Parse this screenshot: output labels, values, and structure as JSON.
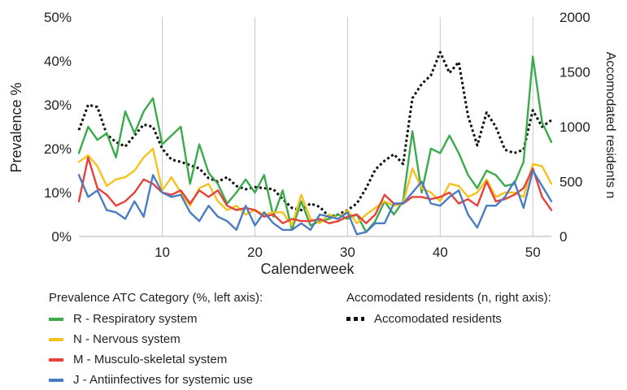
{
  "chart_data": {
    "type": "line",
    "xlabel": "Calenderweek",
    "ylabel_left": "Prevalence %",
    "ylabel_right": "Accomodated residents n",
    "x": [
      1,
      2,
      3,
      4,
      5,
      6,
      7,
      8,
      9,
      10,
      11,
      12,
      13,
      14,
      15,
      16,
      17,
      18,
      19,
      20,
      21,
      22,
      23,
      24,
      25,
      26,
      27,
      28,
      29,
      30,
      31,
      32,
      33,
      34,
      35,
      36,
      37,
      38,
      39,
      40,
      41,
      42,
      43,
      44,
      45,
      46,
      47,
      48,
      49,
      50,
      51,
      52
    ],
    "xlim": [
      1,
      52
    ],
    "x_ticks": [
      "10",
      "20",
      "30",
      "40",
      "50"
    ],
    "y_left_ticks": [
      "0%",
      "10%",
      "20%",
      "30%",
      "40%",
      "50%"
    ],
    "y_left_lim": [
      0,
      50
    ],
    "y_right_ticks": [
      "0",
      "500",
      "1000",
      "1500",
      "2000"
    ],
    "y_right_lim": [
      0,
      2000
    ],
    "grid": "vertical",
    "series": [
      {
        "name": "R - Respiratory system",
        "axis": "left",
        "color": "#3aaa4a",
        "style": "solid",
        "values": [
          19,
          25,
          22,
          23.5,
          18,
          28.5,
          23.5,
          28.5,
          31.5,
          21,
          23,
          25,
          12,
          21,
          14.5,
          12,
          7.5,
          10,
          13,
          10,
          14,
          4.5,
          10.5,
          1.5,
          8,
          2.5,
          3.5,
          4,
          5,
          4,
          5,
          1,
          3.5,
          8,
          5,
          8,
          24,
          10,
          20,
          19,
          23,
          19,
          14,
          11,
          15,
          14,
          11.5,
          12,
          17,
          41,
          26,
          21.5
        ]
      },
      {
        "name": "N - Nervous system",
        "axis": "left",
        "color": "#f5c21c",
        "style": "solid",
        "values": [
          17,
          18.5,
          16,
          11.5,
          13,
          13.5,
          15,
          18,
          20,
          10.5,
          13.5,
          10,
          7,
          11,
          12,
          8,
          6,
          7,
          5,
          6,
          5,
          5.5,
          5.5,
          2.5,
          9.5,
          4,
          3,
          5,
          4,
          6,
          3,
          5,
          6.5,
          8,
          7,
          7.5,
          15.5,
          11,
          10,
          8,
          12,
          11.5,
          9,
          10,
          13,
          9,
          10,
          10,
          9,
          16.5,
          16,
          12
        ]
      },
      {
        "name": "M - Musculo-skeletal system",
        "axis": "left",
        "color": "#e8413b",
        "style": "solid",
        "values": [
          8,
          18,
          11,
          9.5,
          7,
          8,
          10,
          13,
          12,
          10,
          9.5,
          10.5,
          7.5,
          10.5,
          9,
          10.5,
          7,
          6,
          6.5,
          6,
          4.5,
          5,
          3,
          4,
          3.5,
          3.5,
          4,
          3,
          3.5,
          4.5,
          5,
          3,
          5,
          9.5,
          7.5,
          7.5,
          9,
          9,
          8.5,
          9,
          10,
          7.5,
          8.5,
          7,
          12.5,
          8,
          8.5,
          9.5,
          11,
          15.5,
          9,
          6
        ]
      },
      {
        "name": "J - Antiinfectives for systemic use",
        "axis": "left",
        "color": "#4a7cc4",
        "style": "solid",
        "values": [
          14,
          9,
          10.5,
          6,
          5.5,
          4,
          8,
          4.5,
          14,
          10,
          9,
          9.5,
          5.5,
          3.5,
          7,
          4.5,
          3.5,
          1.5,
          7,
          2.5,
          5.5,
          3,
          1.5,
          1.5,
          3,
          1.5,
          5,
          4.5,
          4,
          5.5,
          0.5,
          1,
          3,
          3,
          7.5,
          7.5,
          10,
          12.5,
          7.5,
          7,
          9,
          10.5,
          5,
          2,
          7,
          7,
          9,
          12.5,
          6.5,
          15,
          11.5,
          8
        ]
      },
      {
        "name": "Accomodated residents",
        "axis": "right",
        "color": "#111111",
        "style": "dotted",
        "values": [
          970,
          1200,
          1180,
          930,
          860,
          820,
          920,
          1020,
          1000,
          800,
          700,
          680,
          650,
          620,
          530,
          500,
          540,
          460,
          430,
          450,
          440,
          430,
          340,
          260,
          240,
          300,
          270,
          180,
          200,
          240,
          300,
          440,
          610,
          690,
          750,
          660,
          1260,
          1390,
          1470,
          1680,
          1490,
          1590,
          1100,
          830,
          1130,
          1000,
          790,
          760,
          790,
          1150,
          1000,
          1060
        ]
      }
    ]
  },
  "legend": {
    "left_heading": "Prevalence ATC Category (%, left axis):",
    "left_items": [
      {
        "label": "R - Respiratory system",
        "color": "#3aaa4a"
      },
      {
        "label": "N - Nervous system",
        "color": "#f5c21c"
      },
      {
        "label": "M - Musculo-skeletal system",
        "color": "#e8413b"
      },
      {
        "label": "J - Antiinfectives for systemic use",
        "color": "#4a7cc4"
      }
    ],
    "right_heading": "Accomodated residents (n, right axis):",
    "right_items": [
      {
        "label": "Accomodated residents",
        "style": "dotted",
        "color": "#111111"
      }
    ]
  }
}
